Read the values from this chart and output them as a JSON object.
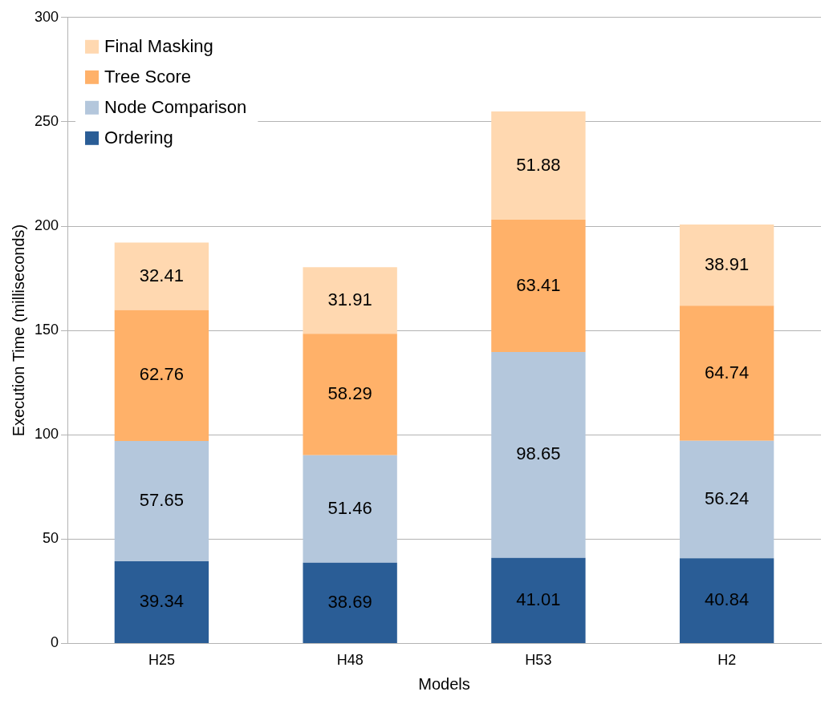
{
  "chart_data": {
    "type": "bar",
    "stacked": true,
    "xlabel": "Models",
    "ylabel": "Execution Time (milliseconds)",
    "categories": [
      "H25",
      "H48",
      "H53",
      "H2"
    ],
    "series": [
      {
        "name": "Ordering",
        "color": "#2a5d96",
        "values": [
          39.34,
          38.69,
          41.01,
          40.84
        ]
      },
      {
        "name": "Node Comparison",
        "color": "#b4c7dc",
        "values": [
          57.65,
          51.46,
          98.65,
          56.24
        ]
      },
      {
        "name": "Tree Score",
        "color": "#ffb169",
        "values": [
          62.76,
          58.29,
          63.41,
          64.74
        ]
      },
      {
        "name": "Final Masking",
        "color": "#ffd8b0",
        "values": [
          32.41,
          31.91,
          51.88,
          38.91
        ]
      }
    ],
    "ylim": [
      0,
      300
    ],
    "yticks": [
      0,
      50,
      100,
      150,
      200,
      250,
      300
    ],
    "grid": "y",
    "legend": "top left",
    "data_labels": true
  }
}
